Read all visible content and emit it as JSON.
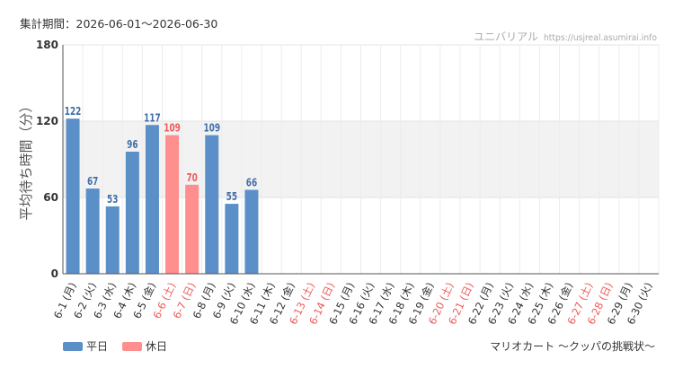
{
  "header": {
    "period": "集計期間：2026-06-01～2026-06-30",
    "site_name": "ユニバリアル",
    "site_url": "https://usjreal.asumirai.info"
  },
  "footer": {
    "attraction": "マリオカート ～クッパの挑戦状～"
  },
  "colors": {
    "weekday": "#5b8fc7",
    "holiday": "#ff8e8e",
    "holiday_label": "#ee5a5a",
    "band": "#f2f2f2"
  },
  "chart_data": {
    "type": "bar",
    "ylabel": "平均待ち時間（分）",
    "ylim": [
      0,
      180
    ],
    "yticks": [
      0,
      60,
      120,
      180
    ],
    "band": [
      60,
      120
    ],
    "grid": true,
    "categories": [
      "6-1 (月)",
      "6-2 (火)",
      "6-3 (水)",
      "6-4 (木)",
      "6-5 (金)",
      "6-6 (土)",
      "6-7 (日)",
      "6-8 (月)",
      "6-9 (火)",
      "6-10 (水)",
      "6-11 (木)",
      "6-12 (金)",
      "6-13 (土)",
      "6-14 (日)",
      "6-15 (月)",
      "6-16 (火)",
      "6-17 (水)",
      "6-18 (木)",
      "6-19 (金)",
      "6-20 (土)",
      "6-21 (日)",
      "6-22 (月)",
      "6-23 (火)",
      "6-24 (水)",
      "6-25 (木)",
      "6-26 (金)",
      "6-27 (土)",
      "6-28 (日)",
      "6-29 (月)",
      "6-30 (火)"
    ],
    "holidays": [
      false,
      false,
      false,
      false,
      false,
      true,
      true,
      false,
      false,
      false,
      false,
      false,
      true,
      true,
      false,
      false,
      false,
      false,
      false,
      true,
      true,
      false,
      false,
      false,
      false,
      false,
      true,
      true,
      false,
      false
    ],
    "values": [
      122,
      67,
      53,
      96,
      117,
      109,
      70,
      109,
      55,
      66,
      null,
      null,
      null,
      null,
      null,
      null,
      null,
      null,
      null,
      null,
      null,
      null,
      null,
      null,
      null,
      null,
      null,
      null,
      null,
      null
    ],
    "legend": [
      {
        "name": "平日",
        "color": "#5b8fc7"
      },
      {
        "name": "休日",
        "color": "#ff8e8e"
      }
    ],
    "legend_position": "bottom-left"
  }
}
